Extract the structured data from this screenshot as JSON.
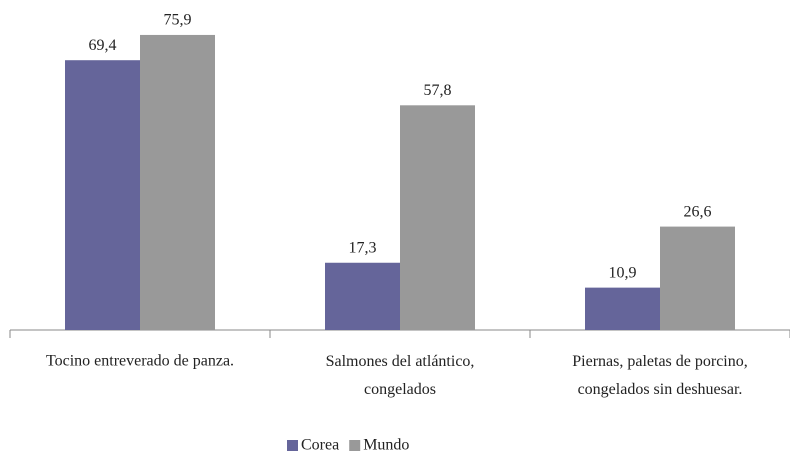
{
  "chart_data": {
    "type": "bar",
    "categories": [
      "Tocino entreverado de panza.",
      "Salmones del atlántico,\ncongelados",
      "Piernas, paletas de porcino,\ncongelados sin deshuesar."
    ],
    "series": [
      {
        "name": "Corea",
        "color": "#65659a",
        "values": [
          69.4,
          17.3,
          10.9
        ],
        "value_labels": [
          "69,4",
          "17,3",
          "10,9"
        ]
      },
      {
        "name": "Mundo",
        "color": "#999999",
        "values": [
          75.9,
          57.8,
          26.6
        ],
        "value_labels": [
          "75,9",
          "57,8",
          "26,6"
        ]
      }
    ],
    "ylim": [
      0,
      80
    ],
    "legend": "bottom"
  }
}
